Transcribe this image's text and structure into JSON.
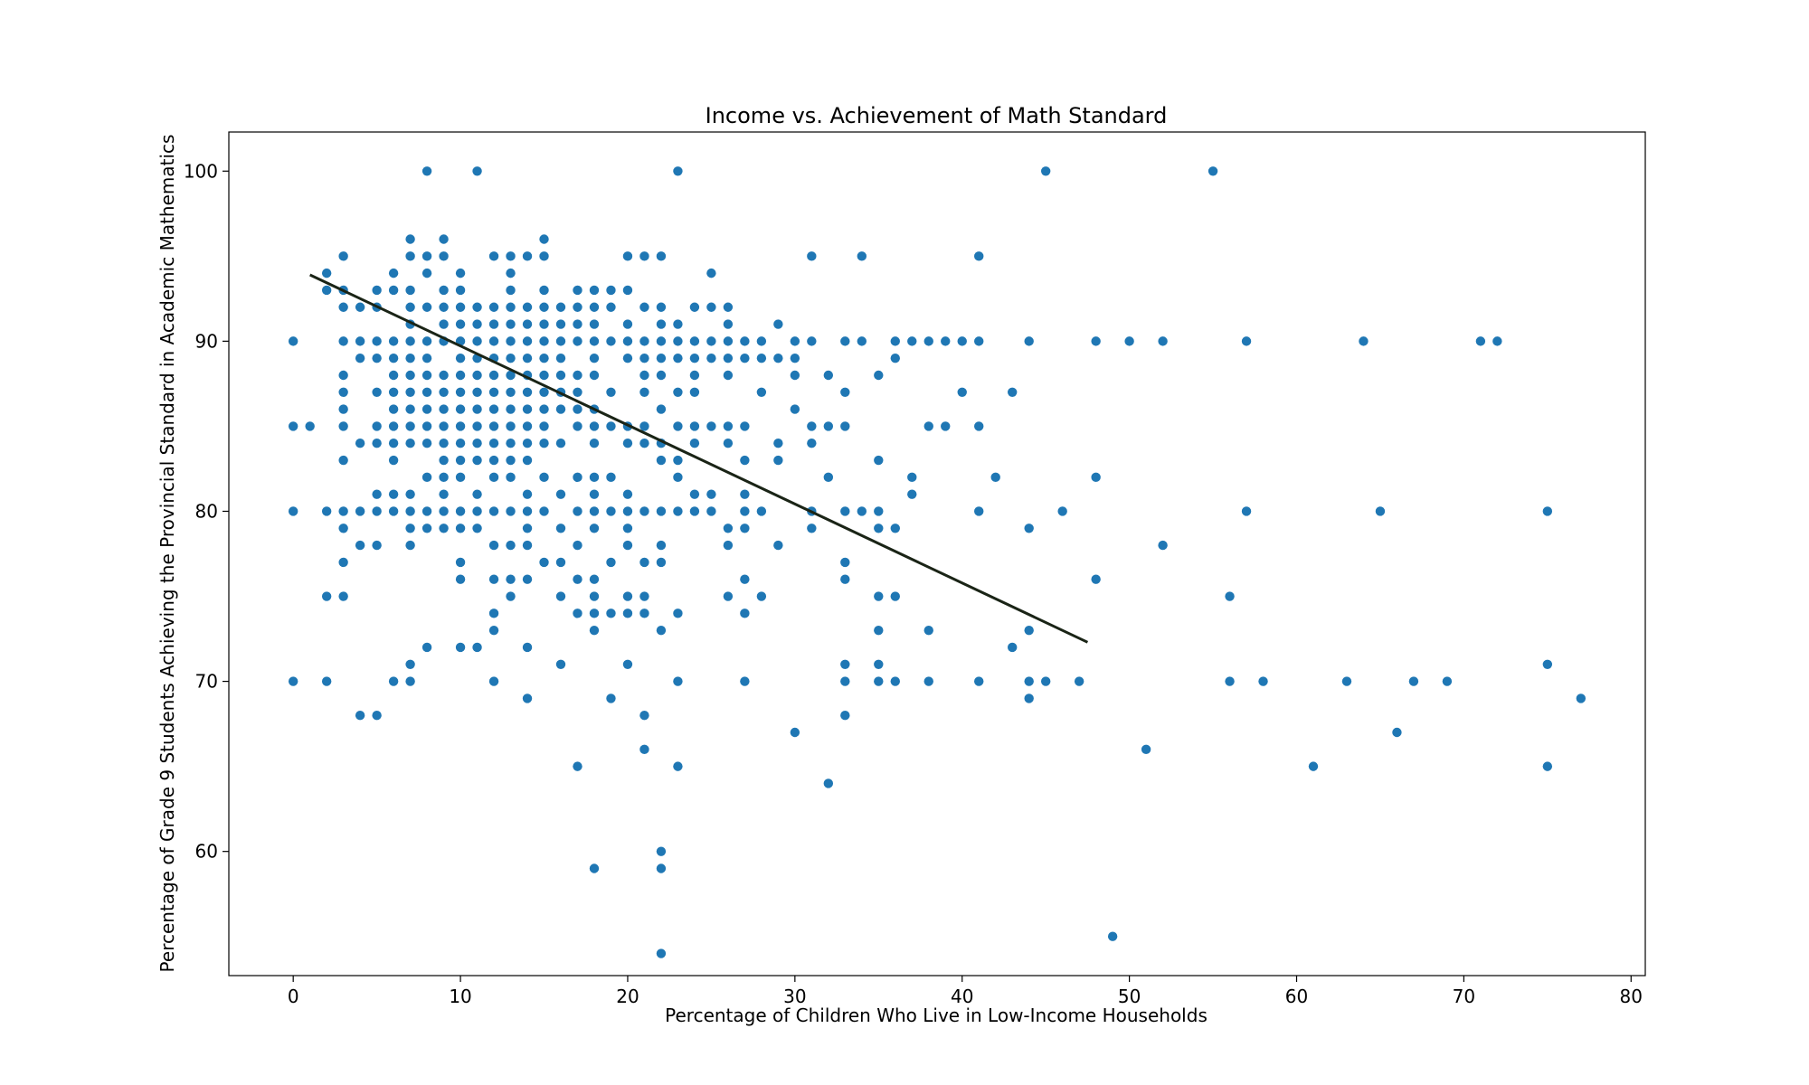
{
  "chart_data": {
    "type": "scatter",
    "title": "Income vs. Achievement of Math Standard",
    "xlabel": "Percentage of Children Who Live in Low-Income Households",
    "ylabel": "Percentage of Grade 9 Students Achieving the Provincial Standard in Academic Mathematics",
    "xlim": [
      -3.85,
      80.85
    ],
    "ylim": [
      52.7,
      102.3
    ],
    "xticks": [
      0,
      10,
      20,
      30,
      40,
      50,
      60,
      70,
      80
    ],
    "yticks": [
      60,
      70,
      80,
      90,
      100
    ],
    "grid": false,
    "point_color": "#1f77b4",
    "line_color": "#1a2416",
    "trendline": {
      "x": [
        1,
        47.5
      ],
      "y": [
        93.9,
        72.3
      ]
    },
    "points": [
      [
        0,
        90
      ],
      [
        0,
        85
      ],
      [
        0,
        80
      ],
      [
        0,
        70
      ],
      [
        1,
        85
      ],
      [
        2,
        94
      ],
      [
        2,
        93
      ],
      [
        2,
        80
      ],
      [
        2,
        75
      ],
      [
        2,
        70
      ],
      [
        3,
        95
      ],
      [
        3,
        93
      ],
      [
        3,
        92
      ],
      [
        3,
        90
      ],
      [
        3,
        88
      ],
      [
        3,
        87
      ],
      [
        3,
        86
      ],
      [
        3,
        85
      ],
      [
        3,
        83
      ],
      [
        3,
        80
      ],
      [
        3,
        79
      ],
      [
        3,
        77
      ],
      [
        3,
        75
      ],
      [
        4,
        92
      ],
      [
        4,
        90
      ],
      [
        4,
        89
      ],
      [
        4,
        84
      ],
      [
        4,
        80
      ],
      [
        4,
        78
      ],
      [
        4,
        68
      ],
      [
        5,
        93
      ],
      [
        5,
        92
      ],
      [
        5,
        90
      ],
      [
        5,
        89
      ],
      [
        5,
        87
      ],
      [
        5,
        85
      ],
      [
        5,
        84
      ],
      [
        5,
        81
      ],
      [
        5,
        80
      ],
      [
        5,
        78
      ],
      [
        5,
        68
      ],
      [
        6,
        94
      ],
      [
        6,
        93
      ],
      [
        6,
        90
      ],
      [
        6,
        89
      ],
      [
        6,
        88
      ],
      [
        6,
        87
      ],
      [
        6,
        86
      ],
      [
        6,
        85
      ],
      [
        6,
        84
      ],
      [
        6,
        83
      ],
      [
        6,
        81
      ],
      [
        6,
        80
      ],
      [
        6,
        70
      ],
      [
        7,
        96
      ],
      [
        7,
        95
      ],
      [
        7,
        93
      ],
      [
        7,
        92
      ],
      [
        7,
        91
      ],
      [
        7,
        90
      ],
      [
        7,
        89
      ],
      [
        7,
        88
      ],
      [
        7,
        87
      ],
      [
        7,
        86
      ],
      [
        7,
        85
      ],
      [
        7,
        84
      ],
      [
        7,
        81
      ],
      [
        7,
        80
      ],
      [
        7,
        79
      ],
      [
        7,
        78
      ],
      [
        7,
        71
      ],
      [
        7,
        70
      ],
      [
        8,
        100
      ],
      [
        8,
        95
      ],
      [
        8,
        94
      ],
      [
        8,
        92
      ],
      [
        8,
        90
      ],
      [
        8,
        89
      ],
      [
        8,
        88
      ],
      [
        8,
        87
      ],
      [
        8,
        86
      ],
      [
        8,
        85
      ],
      [
        8,
        84
      ],
      [
        8,
        82
      ],
      [
        8,
        80
      ],
      [
        8,
        79
      ],
      [
        8,
        72
      ],
      [
        9,
        96
      ],
      [
        9,
        95
      ],
      [
        9,
        93
      ],
      [
        9,
        92
      ],
      [
        9,
        91
      ],
      [
        9,
        90
      ],
      [
        9,
        88
      ],
      [
        9,
        87
      ],
      [
        9,
        86
      ],
      [
        9,
        85
      ],
      [
        9,
        84
      ],
      [
        9,
        83
      ],
      [
        9,
        82
      ],
      [
        9,
        81
      ],
      [
        9,
        80
      ],
      [
        9,
        79
      ],
      [
        10,
        94
      ],
      [
        10,
        93
      ],
      [
        10,
        92
      ],
      [
        10,
        91
      ],
      [
        10,
        90
      ],
      [
        10,
        89
      ],
      [
        10,
        88
      ],
      [
        10,
        87
      ],
      [
        10,
        86
      ],
      [
        10,
        85
      ],
      [
        10,
        84
      ],
      [
        10,
        83
      ],
      [
        10,
        82
      ],
      [
        10,
        80
      ],
      [
        10,
        79
      ],
      [
        10,
        77
      ],
      [
        10,
        76
      ],
      [
        10,
        72
      ],
      [
        11,
        100
      ],
      [
        11,
        92
      ],
      [
        11,
        91
      ],
      [
        11,
        90
      ],
      [
        11,
        89
      ],
      [
        11,
        88
      ],
      [
        11,
        87
      ],
      [
        11,
        86
      ],
      [
        11,
        85
      ],
      [
        11,
        84
      ],
      [
        11,
        83
      ],
      [
        11,
        81
      ],
      [
        11,
        80
      ],
      [
        11,
        79
      ],
      [
        11,
        72
      ],
      [
        12,
        95
      ],
      [
        12,
        92
      ],
      [
        12,
        91
      ],
      [
        12,
        90
      ],
      [
        12,
        89
      ],
      [
        12,
        88
      ],
      [
        12,
        87
      ],
      [
        12,
        86
      ],
      [
        12,
        85
      ],
      [
        12,
        84
      ],
      [
        12,
        83
      ],
      [
        12,
        82
      ],
      [
        12,
        80
      ],
      [
        12,
        78
      ],
      [
        12,
        76
      ],
      [
        12,
        74
      ],
      [
        12,
        73
      ],
      [
        12,
        70
      ],
      [
        13,
        95
      ],
      [
        13,
        94
      ],
      [
        13,
        93
      ],
      [
        13,
        92
      ],
      [
        13,
        91
      ],
      [
        13,
        90
      ],
      [
        13,
        89
      ],
      [
        13,
        88
      ],
      [
        13,
        87
      ],
      [
        13,
        86
      ],
      [
        13,
        85
      ],
      [
        13,
        84
      ],
      [
        13,
        83
      ],
      [
        13,
        82
      ],
      [
        13,
        80
      ],
      [
        13,
        78
      ],
      [
        13,
        76
      ],
      [
        13,
        75
      ],
      [
        14,
        95
      ],
      [
        14,
        92
      ],
      [
        14,
        91
      ],
      [
        14,
        90
      ],
      [
        14,
        89
      ],
      [
        14,
        88
      ],
      [
        14,
        87
      ],
      [
        14,
        86
      ],
      [
        14,
        85
      ],
      [
        14,
        84
      ],
      [
        14,
        83
      ],
      [
        14,
        81
      ],
      [
        14,
        80
      ],
      [
        14,
        79
      ],
      [
        14,
        78
      ],
      [
        14,
        76
      ],
      [
        14,
        72
      ],
      [
        14,
        69
      ],
      [
        15,
        96
      ],
      [
        15,
        95
      ],
      [
        15,
        93
      ],
      [
        15,
        92
      ],
      [
        15,
        91
      ],
      [
        15,
        90
      ],
      [
        15,
        89
      ],
      [
        15,
        88
      ],
      [
        15,
        87
      ],
      [
        15,
        86
      ],
      [
        15,
        85
      ],
      [
        15,
        84
      ],
      [
        15,
        82
      ],
      [
        15,
        80
      ],
      [
        15,
        77
      ],
      [
        16,
        92
      ],
      [
        16,
        91
      ],
      [
        16,
        90
      ],
      [
        16,
        89
      ],
      [
        16,
        88
      ],
      [
        16,
        87
      ],
      [
        16,
        86
      ],
      [
        16,
        84
      ],
      [
        16,
        81
      ],
      [
        16,
        79
      ],
      [
        16,
        77
      ],
      [
        16,
        75
      ],
      [
        16,
        71
      ],
      [
        17,
        93
      ],
      [
        17,
        92
      ],
      [
        17,
        91
      ],
      [
        17,
        90
      ],
      [
        17,
        88
      ],
      [
        17,
        87
      ],
      [
        17,
        86
      ],
      [
        17,
        85
      ],
      [
        17,
        82
      ],
      [
        17,
        80
      ],
      [
        17,
        78
      ],
      [
        17,
        76
      ],
      [
        17,
        74
      ],
      [
        17,
        65
      ],
      [
        18,
        93
      ],
      [
        18,
        92
      ],
      [
        18,
        91
      ],
      [
        18,
        90
      ],
      [
        18,
        89
      ],
      [
        18,
        88
      ],
      [
        18,
        86
      ],
      [
        18,
        85
      ],
      [
        18,
        84
      ],
      [
        18,
        82
      ],
      [
        18,
        81
      ],
      [
        18,
        80
      ],
      [
        18,
        79
      ],
      [
        18,
        76
      ],
      [
        18,
        75
      ],
      [
        18,
        74
      ],
      [
        18,
        73
      ],
      [
        18,
        59
      ],
      [
        19,
        93
      ],
      [
        19,
        92
      ],
      [
        19,
        90
      ],
      [
        19,
        87
      ],
      [
        19,
        85
      ],
      [
        19,
        82
      ],
      [
        19,
        80
      ],
      [
        19,
        77
      ],
      [
        19,
        74
      ],
      [
        19,
        69
      ],
      [
        20,
        95
      ],
      [
        20,
        93
      ],
      [
        20,
        91
      ],
      [
        20,
        90
      ],
      [
        20,
        89
      ],
      [
        20,
        85
      ],
      [
        20,
        84
      ],
      [
        20,
        81
      ],
      [
        20,
        80
      ],
      [
        20,
        79
      ],
      [
        20,
        78
      ],
      [
        20,
        75
      ],
      [
        20,
        74
      ],
      [
        20,
        71
      ],
      [
        21,
        95
      ],
      [
        21,
        92
      ],
      [
        21,
        90
      ],
      [
        21,
        89
      ],
      [
        21,
        88
      ],
      [
        21,
        87
      ],
      [
        21,
        85
      ],
      [
        21,
        84
      ],
      [
        21,
        80
      ],
      [
        21,
        77
      ],
      [
        21,
        75
      ],
      [
        21,
        74
      ],
      [
        21,
        68
      ],
      [
        21,
        66
      ],
      [
        22,
        95
      ],
      [
        22,
        92
      ],
      [
        22,
        91
      ],
      [
        22,
        90
      ],
      [
        22,
        89
      ],
      [
        22,
        88
      ],
      [
        22,
        86
      ],
      [
        22,
        84
      ],
      [
        22,
        83
      ],
      [
        22,
        80
      ],
      [
        22,
        78
      ],
      [
        22,
        77
      ],
      [
        22,
        73
      ],
      [
        22,
        60
      ],
      [
        22,
        59
      ],
      [
        22,
        54
      ],
      [
        23,
        100
      ],
      [
        23,
        91
      ],
      [
        23,
        90
      ],
      [
        23,
        89
      ],
      [
        23,
        87
      ],
      [
        23,
        85
      ],
      [
        23,
        83
      ],
      [
        23,
        82
      ],
      [
        23,
        80
      ],
      [
        23,
        74
      ],
      [
        23,
        70
      ],
      [
        23,
        65
      ],
      [
        24,
        92
      ],
      [
        24,
        90
      ],
      [
        24,
        89
      ],
      [
        24,
        88
      ],
      [
        24,
        87
      ],
      [
        24,
        85
      ],
      [
        24,
        84
      ],
      [
        24,
        81
      ],
      [
        24,
        80
      ],
      [
        25,
        94
      ],
      [
        25,
        92
      ],
      [
        25,
        90
      ],
      [
        25,
        89
      ],
      [
        25,
        85
      ],
      [
        25,
        81
      ],
      [
        25,
        80
      ],
      [
        26,
        92
      ],
      [
        26,
        91
      ],
      [
        26,
        90
      ],
      [
        26,
        89
      ],
      [
        26,
        88
      ],
      [
        26,
        85
      ],
      [
        26,
        84
      ],
      [
        26,
        79
      ],
      [
        26,
        78
      ],
      [
        26,
        75
      ],
      [
        27,
        90
      ],
      [
        27,
        89
      ],
      [
        27,
        85
      ],
      [
        27,
        83
      ],
      [
        27,
        81
      ],
      [
        27,
        80
      ],
      [
        27,
        79
      ],
      [
        27,
        76
      ],
      [
        27,
        74
      ],
      [
        27,
        70
      ],
      [
        28,
        90
      ],
      [
        28,
        89
      ],
      [
        28,
        87
      ],
      [
        28,
        80
      ],
      [
        28,
        75
      ],
      [
        29,
        91
      ],
      [
        29,
        89
      ],
      [
        29,
        84
      ],
      [
        29,
        83
      ],
      [
        29,
        78
      ],
      [
        30,
        90
      ],
      [
        30,
        89
      ],
      [
        30,
        88
      ],
      [
        30,
        86
      ],
      [
        30,
        67
      ],
      [
        31,
        95
      ],
      [
        31,
        90
      ],
      [
        31,
        85
      ],
      [
        31,
        84
      ],
      [
        31,
        80
      ],
      [
        31,
        79
      ],
      [
        32,
        88
      ],
      [
        32,
        85
      ],
      [
        32,
        82
      ],
      [
        32,
        64
      ],
      [
        33,
        90
      ],
      [
        33,
        87
      ],
      [
        33,
        85
      ],
      [
        33,
        80
      ],
      [
        33,
        77
      ],
      [
        33,
        76
      ],
      [
        33,
        71
      ],
      [
        33,
        70
      ],
      [
        33,
        68
      ],
      [
        34,
        95
      ],
      [
        34,
        90
      ],
      [
        34,
        80
      ],
      [
        35,
        88
      ],
      [
        35,
        83
      ],
      [
        35,
        80
      ],
      [
        35,
        79
      ],
      [
        35,
        75
      ],
      [
        35,
        73
      ],
      [
        35,
        71
      ],
      [
        35,
        70
      ],
      [
        36,
        90
      ],
      [
        36,
        89
      ],
      [
        36,
        79
      ],
      [
        36,
        75
      ],
      [
        36,
        70
      ],
      [
        37,
        90
      ],
      [
        37,
        82
      ],
      [
        37,
        81
      ],
      [
        38,
        90
      ],
      [
        38,
        85
      ],
      [
        38,
        73
      ],
      [
        38,
        70
      ],
      [
        39,
        90
      ],
      [
        39,
        85
      ],
      [
        40,
        90
      ],
      [
        40,
        87
      ],
      [
        41,
        95
      ],
      [
        41,
        90
      ],
      [
        41,
        85
      ],
      [
        41,
        80
      ],
      [
        41,
        70
      ],
      [
        42,
        82
      ],
      [
        43,
        87
      ],
      [
        43,
        72
      ],
      [
        44,
        90
      ],
      [
        44,
        79
      ],
      [
        44,
        73
      ],
      [
        44,
        70
      ],
      [
        44,
        69
      ],
      [
        45,
        100
      ],
      [
        45,
        70
      ],
      [
        46,
        80
      ],
      [
        47,
        70
      ],
      [
        48,
        90
      ],
      [
        48,
        82
      ],
      [
        48,
        76
      ],
      [
        49,
        55
      ],
      [
        50,
        90
      ],
      [
        51,
        66
      ],
      [
        52,
        90
      ],
      [
        52,
        78
      ],
      [
        55,
        100
      ],
      [
        56,
        75
      ],
      [
        56,
        70
      ],
      [
        57,
        90
      ],
      [
        57,
        80
      ],
      [
        58,
        70
      ],
      [
        61,
        65
      ],
      [
        63,
        70
      ],
      [
        64,
        90
      ],
      [
        65,
        80
      ],
      [
        66,
        67
      ],
      [
        67,
        70
      ],
      [
        69,
        70
      ],
      [
        71,
        90
      ],
      [
        72,
        90
      ],
      [
        75,
        80
      ],
      [
        75,
        71
      ],
      [
        75,
        65
      ],
      [
        77,
        69
      ]
    ]
  }
}
